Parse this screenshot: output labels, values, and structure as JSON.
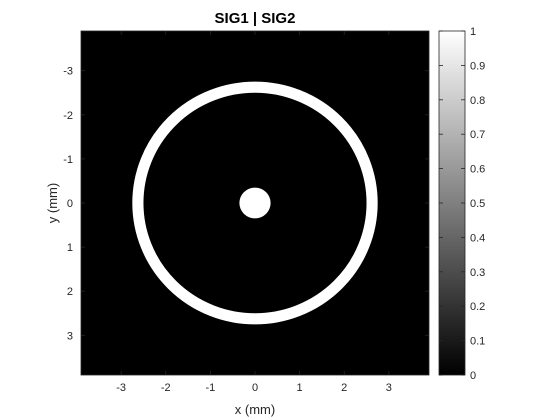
{
  "chart_data": {
    "type": "heatmap",
    "title": "SIG1 | SIG2",
    "xlabel": "x (mm)",
    "ylabel": "y (mm)",
    "xlim": [
      -3.9,
      3.9
    ],
    "ylim": [
      -3.9,
      3.9
    ],
    "y_direction": "reversed",
    "x_ticks": [
      -3,
      -2,
      -1,
      0,
      1,
      2,
      3
    ],
    "y_ticks": [
      -3,
      -2,
      -1,
      0,
      1,
      2,
      3
    ],
    "x_tick_labels": [
      "-3",
      "-2",
      "-1",
      "0",
      "1",
      "2",
      "3"
    ],
    "y_tick_labels": [
      "-3",
      "-2",
      "-1",
      "0",
      "1",
      "2",
      "3"
    ],
    "background_value": 0,
    "features": [
      {
        "shape": "disk",
        "center": [
          0,
          0
        ],
        "radius_mm": 0.35,
        "value": 1
      },
      {
        "shape": "annulus",
        "center": [
          0,
          0
        ],
        "inner_radius_mm": 2.5,
        "outer_radius_mm": 2.75,
        "value": 1
      }
    ],
    "colormap": "gray",
    "colorbar": {
      "range": [
        0,
        1
      ],
      "ticks": [
        0,
        0.1,
        0.2,
        0.3,
        0.4,
        0.5,
        0.6,
        0.7,
        0.8,
        0.9,
        1
      ],
      "tick_labels": [
        "0",
        "0.1",
        "0.2",
        "0.3",
        "0.4",
        "0.5",
        "0.6",
        "0.7",
        "0.8",
        "0.9",
        "1"
      ],
      "position": "right"
    },
    "grid": false
  }
}
